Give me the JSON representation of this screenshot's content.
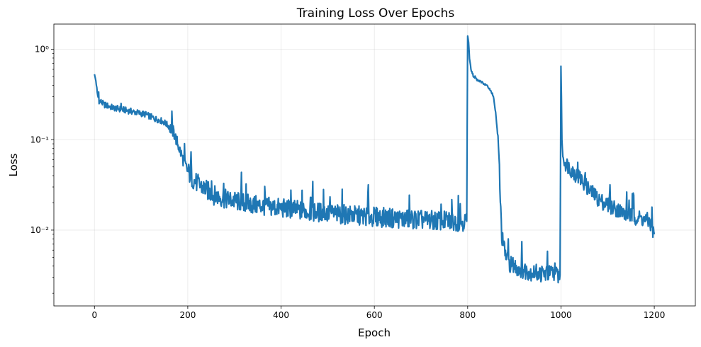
{
  "chart_data": {
    "type": "line",
    "title": "Training Loss Over Epochs",
    "xlabel": "Epoch",
    "ylabel": "Loss",
    "xlim": [
      -87,
      1288
    ],
    "ylim": [
      0.00145,
      1.9
    ],
    "yscale": "log",
    "grid": true,
    "legend": "none",
    "x_ticks": [
      0,
      200,
      400,
      600,
      800,
      1000,
      1200
    ],
    "x_tick_labels": [
      "0",
      "200",
      "400",
      "600",
      "800",
      "1000",
      "1200"
    ],
    "y_ticks": [
      0.01,
      0.1,
      1
    ],
    "y_tick_labels": [
      "10⁻²",
      "10⁻¹",
      "10⁰"
    ],
    "series": [
      {
        "color": "#1f77b4",
        "points": [
          [
            0,
            0.53
          ],
          [
            3,
            0.45
          ],
          [
            6,
            0.32
          ],
          [
            10,
            0.27
          ],
          [
            15,
            0.26
          ],
          [
            20,
            0.245
          ],
          [
            30,
            0.235
          ],
          [
            40,
            0.225
          ],
          [
            50,
            0.22
          ],
          [
            60,
            0.215
          ],
          [
            70,
            0.21
          ],
          [
            80,
            0.205
          ],
          [
            90,
            0.2
          ],
          [
            100,
            0.195
          ],
          [
            110,
            0.19
          ],
          [
            120,
            0.18
          ],
          [
            130,
            0.17
          ],
          [
            140,
            0.165
          ],
          [
            150,
            0.155
          ],
          [
            160,
            0.14
          ],
          [
            170,
            0.12
          ],
          [
            180,
            0.085
          ],
          [
            190,
            0.06
          ],
          [
            200,
            0.045
          ],
          [
            210,
            0.037
          ],
          [
            220,
            0.033
          ],
          [
            230,
            0.03
          ],
          [
            240,
            0.028
          ],
          [
            250,
            0.025
          ],
          [
            260,
            0.024
          ],
          [
            270,
            0.023
          ],
          [
            280,
            0.022
          ],
          [
            300,
            0.021
          ],
          [
            320,
            0.02
          ],
          [
            340,
            0.019
          ],
          [
            360,
            0.0185
          ],
          [
            380,
            0.018
          ],
          [
            400,
            0.0175
          ],
          [
            420,
            0.017
          ],
          [
            440,
            0.0165
          ],
          [
            460,
            0.016
          ],
          [
            480,
            0.0158
          ],
          [
            500,
            0.0155
          ],
          [
            520,
            0.015
          ],
          [
            540,
            0.0148
          ],
          [
            560,
            0.0145
          ],
          [
            580,
            0.0142
          ],
          [
            600,
            0.014
          ],
          [
            620,
            0.0138
          ],
          [
            640,
            0.0135
          ],
          [
            660,
            0.0133
          ],
          [
            680,
            0.0132
          ],
          [
            700,
            0.013
          ],
          [
            720,
            0.0128
          ],
          [
            740,
            0.0127
          ],
          [
            760,
            0.0126
          ],
          [
            780,
            0.0125
          ],
          [
            798,
            0.0125
          ],
          [
            800,
            1.4
          ],
          [
            802,
            1.2
          ],
          [
            804,
            0.8
          ],
          [
            807,
            0.6
          ],
          [
            812,
            0.5
          ],
          [
            820,
            0.46
          ],
          [
            830,
            0.43
          ],
          [
            840,
            0.4
          ],
          [
            848,
            0.36
          ],
          [
            855,
            0.3
          ],
          [
            860,
            0.2
          ],
          [
            865,
            0.1
          ],
          [
            868,
            0.05
          ],
          [
            870,
            0.02
          ],
          [
            873,
            0.009
          ],
          [
            877,
            0.0065
          ],
          [
            883,
            0.005
          ],
          [
            890,
            0.0043
          ],
          [
            900,
            0.004
          ],
          [
            920,
            0.0036
          ],
          [
            940,
            0.0034
          ],
          [
            960,
            0.0033
          ],
          [
            980,
            0.0033
          ],
          [
            998,
            0.0032
          ],
          [
            1000,
            0.65
          ],
          [
            1001,
            0.3
          ],
          [
            1002,
            0.1
          ],
          [
            1004,
            0.065
          ],
          [
            1010,
            0.055
          ],
          [
            1020,
            0.048
          ],
          [
            1030,
            0.042
          ],
          [
            1040,
            0.038
          ],
          [
            1050,
            0.033
          ],
          [
            1060,
            0.028
          ],
          [
            1080,
            0.022
          ],
          [
            1100,
            0.019
          ],
          [
            1120,
            0.017
          ],
          [
            1140,
            0.015
          ],
          [
            1160,
            0.014
          ],
          [
            1180,
            0.013
          ],
          [
            1190,
            0.0125
          ],
          [
            1200,
            0.009
          ]
        ]
      }
    ]
  }
}
